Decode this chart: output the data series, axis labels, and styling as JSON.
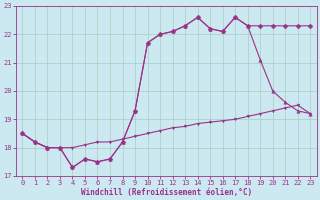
{
  "xlabel": "Windchill (Refroidissement éolien,°C)",
  "bg_color": "#cce8f0",
  "grid_color": "#a8cfc0",
  "line_color": "#993388",
  "xlim": [
    -0.5,
    23.5
  ],
  "ylim": [
    17.0,
    23.0
  ],
  "yticks": [
    17,
    18,
    19,
    20,
    21,
    22,
    23
  ],
  "xticks": [
    0,
    1,
    2,
    3,
    4,
    5,
    6,
    7,
    8,
    9,
    10,
    11,
    12,
    13,
    14,
    15,
    16,
    17,
    18,
    19,
    20,
    21,
    22,
    23
  ],
  "line1_x": [
    0,
    1,
    2,
    3,
    4,
    5,
    6,
    7,
    8,
    9,
    10,
    11,
    12,
    13,
    14,
    15,
    16,
    17,
    18,
    19,
    20,
    21,
    22,
    23
  ],
  "line1_y": [
    18.5,
    18.2,
    18.0,
    18.0,
    17.3,
    17.6,
    17.5,
    17.6,
    18.2,
    19.3,
    21.7,
    22.0,
    22.1,
    22.3,
    22.6,
    22.2,
    22.1,
    22.6,
    22.3,
    22.3,
    22.3,
    22.3,
    22.3,
    22.3
  ],
  "line2_x": [
    0,
    1,
    2,
    3,
    4,
    5,
    6,
    7,
    8,
    9,
    10,
    11,
    12,
    13,
    14,
    15,
    16,
    17,
    18,
    19,
    20,
    21,
    22,
    23
  ],
  "line2_y": [
    18.5,
    18.2,
    18.0,
    18.0,
    17.3,
    17.6,
    17.5,
    17.6,
    18.2,
    19.3,
    21.7,
    22.0,
    22.1,
    22.3,
    22.6,
    22.2,
    22.1,
    22.6,
    22.3,
    21.1,
    20.0,
    19.6,
    19.3,
    19.2
  ],
  "line3_x": [
    0,
    1,
    2,
    3,
    4,
    5,
    6,
    7,
    8,
    9,
    10,
    11,
    12,
    13,
    14,
    15,
    16,
    17,
    18,
    19,
    20,
    21,
    22,
    23
  ],
  "line3_y": [
    18.5,
    18.2,
    18.0,
    18.0,
    18.0,
    18.1,
    18.2,
    18.2,
    18.3,
    18.4,
    18.5,
    18.6,
    18.7,
    18.75,
    18.85,
    18.9,
    18.95,
    19.0,
    19.1,
    19.2,
    19.3,
    19.4,
    19.5,
    19.2
  ],
  "marker1": "D",
  "marker2": "^",
  "marker3": "v",
  "markersize1": 2.5,
  "markersize2": 2.5,
  "markersize3": 2.0,
  "linewidth": 0.8,
  "tick_fontsize": 5,
  "xlabel_fontsize": 5.5,
  "figsize": [
    3.2,
    2.0
  ],
  "dpi": 100
}
